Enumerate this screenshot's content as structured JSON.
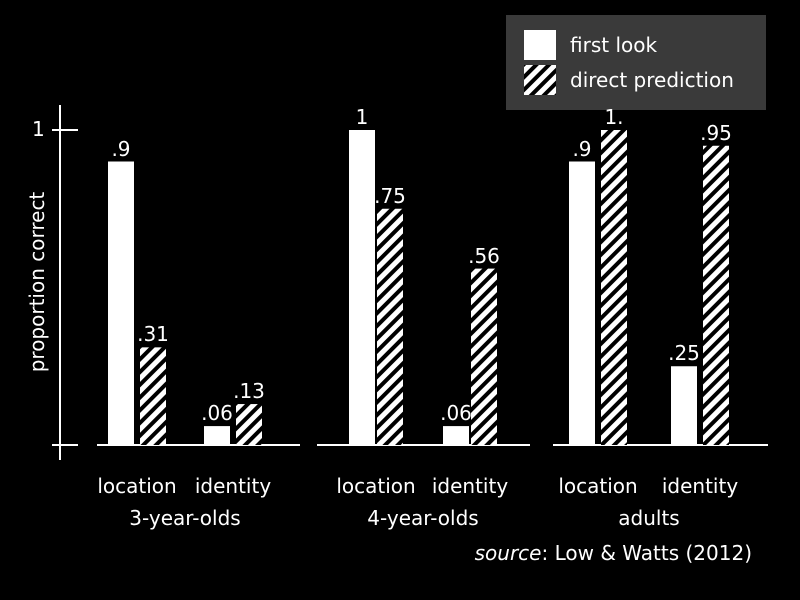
{
  "chart_data": {
    "type": "bar",
    "ylabel": "proportion correct",
    "ylim": [
      0,
      1
    ],
    "yticks": [
      "1"
    ],
    "legend": {
      "position": "top-right",
      "entries": [
        {
          "label": "first look",
          "style": "solid",
          "color": "#ffffff"
        },
        {
          "label": "direct prediction",
          "style": "hatched",
          "color": "#ffffff"
        }
      ]
    },
    "groups": [
      {
        "name": "3-year-olds",
        "categories": [
          "location",
          "identity"
        ],
        "series": [
          {
            "name": "first look",
            "values": [
              0.9,
              0.06
            ],
            "labels": [
              ".9",
              ".06"
            ]
          },
          {
            "name": "direct prediction",
            "values": [
              0.31,
              0.13
            ],
            "labels": [
              ".31",
              ".13"
            ]
          }
        ]
      },
      {
        "name": "4-year-olds",
        "categories": [
          "location",
          "identity"
        ],
        "series": [
          {
            "name": "first look",
            "values": [
              1.0,
              0.06
            ],
            "labels": [
              "1",
              ".06"
            ]
          },
          {
            "name": "direct prediction",
            "values": [
              0.75,
              0.56
            ],
            "labels": [
              ".75",
              ".56"
            ]
          }
        ]
      },
      {
        "name": "adults",
        "categories": [
          "location",
          "identity"
        ],
        "series": [
          {
            "name": "first look",
            "values": [
              0.9,
              0.25
            ],
            "labels": [
              ".9",
              ".25"
            ]
          },
          {
            "name": "direct prediction",
            "values": [
              1.0,
              0.95
            ],
            "labels": [
              "1.",
              ".95"
            ]
          }
        ]
      }
    ],
    "source": {
      "italic": "source",
      "rest": ": Low & Watts (2012)"
    },
    "colors": {
      "background": "#000000",
      "foreground": "#ffffff",
      "legend_box": "#3a3a3a"
    }
  }
}
